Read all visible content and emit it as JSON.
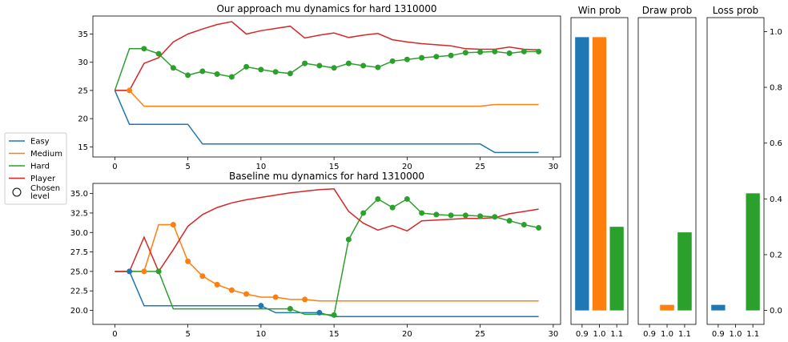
{
  "chart_data": [
    {
      "type": "line",
      "title": "Our approach mu dynamics for hard 1310000",
      "x": [
        0,
        1,
        2,
        3,
        4,
        5,
        6,
        7,
        8,
        9,
        10,
        11,
        12,
        13,
        14,
        15,
        16,
        17,
        18,
        19,
        20,
        21,
        22,
        23,
        24,
        25,
        26,
        27,
        28,
        29
      ],
      "xlim": [
        -1.5,
        30.5
      ],
      "ylim": [
        13.2,
        38.2
      ],
      "xticks": [
        0,
        5,
        10,
        15,
        20,
        25,
        30
      ],
      "yticks": [
        15,
        20,
        25,
        30,
        35
      ],
      "series": [
        {
          "name": "Easy",
          "color": "#1f77b4",
          "values": [
            25,
            19,
            19,
            19,
            19,
            19,
            15.5,
            15.5,
            15.5,
            15.5,
            15.5,
            15.5,
            15.5,
            15.5,
            15.5,
            15.5,
            15.5,
            15.5,
            15.5,
            15.5,
            15.5,
            15.5,
            15.5,
            15.5,
            15.5,
            15.5,
            14,
            14,
            14,
            14
          ],
          "markers": []
        },
        {
          "name": "Medium",
          "color": "#ff7f0e",
          "values": [
            25,
            25,
            22.2,
            22.2,
            22.2,
            22.2,
            22.2,
            22.2,
            22.2,
            22.2,
            22.2,
            22.2,
            22.2,
            22.2,
            22.2,
            22.2,
            22.2,
            22.2,
            22.2,
            22.2,
            22.2,
            22.2,
            22.2,
            22.2,
            22.2,
            22.2,
            22.5,
            22.5,
            22.5,
            22.5
          ],
          "markers": [
            1
          ]
        },
        {
          "name": "Hard",
          "color": "#2ca02c",
          "values": [
            25,
            32.4,
            32.4,
            31.5,
            29,
            27.7,
            28.4,
            27.9,
            27.4,
            29.2,
            28.7,
            28.3,
            28,
            29.8,
            29.4,
            29,
            29.8,
            29.4,
            29.1,
            30.2,
            30.5,
            30.8,
            31,
            31.2,
            31.7,
            31.8,
            31.9,
            31.6,
            31.9,
            31.9
          ],
          "markers": [
            2,
            3,
            4,
            5,
            6,
            7,
            8,
            9,
            10,
            11,
            12,
            13,
            14,
            15,
            16,
            17,
            18,
            19,
            20,
            21,
            22,
            23,
            24,
            25,
            26,
            27,
            28,
            29
          ]
        },
        {
          "name": "Player",
          "color": "#d62728",
          "values": [
            25,
            25,
            29.8,
            30.8,
            33.6,
            35,
            35.9,
            36.7,
            37.2,
            35,
            35.6,
            36,
            36.4,
            34.3,
            34.8,
            35.2,
            34.4,
            34.8,
            35.1,
            34,
            33.6,
            33.3,
            33.1,
            32.9,
            32.4,
            32.3,
            32.3,
            32.7,
            32.3,
            32.2
          ],
          "markers": []
        }
      ]
    },
    {
      "type": "line",
      "title": "Baseline mu dynamics for hard 1310000",
      "x": [
        0,
        1,
        2,
        3,
        4,
        5,
        6,
        7,
        8,
        9,
        10,
        11,
        12,
        13,
        14,
        15,
        16,
        17,
        18,
        19,
        20,
        21,
        22,
        23,
        24,
        25,
        26,
        27,
        28,
        29
      ],
      "xlim": [
        -1.5,
        30.5
      ],
      "ylim": [
        18.2,
        36.3
      ],
      "xticks": [
        0,
        5,
        10,
        15,
        20,
        25,
        30
      ],
      "yticks": [
        "20.0",
        "22.5",
        "25.0",
        "27.5",
        "30.0",
        "32.5",
        "35.0"
      ],
      "series": [
        {
          "name": "Easy",
          "color": "#1f77b4",
          "values": [
            25,
            25,
            20.6,
            20.6,
            20.6,
            20.6,
            20.6,
            20.6,
            20.6,
            20.6,
            20.6,
            19.7,
            19.7,
            19.7,
            19.7,
            19.2,
            19.2,
            19.2,
            19.2,
            19.2,
            19.2,
            19.2,
            19.2,
            19.2,
            19.2,
            19.2,
            19.2,
            19.2,
            19.2,
            19.2
          ],
          "markers": [
            1,
            10,
            14
          ]
        },
        {
          "name": "Medium",
          "color": "#ff7f0e",
          "values": [
            25,
            25,
            25,
            31,
            31,
            26.3,
            24.4,
            23.3,
            22.6,
            22.1,
            21.7,
            21.7,
            21.4,
            21.4,
            21.2,
            21.2,
            21.2,
            21.2,
            21.2,
            21.2,
            21.2,
            21.2,
            21.2,
            21.2,
            21.2,
            21.2,
            21.2,
            21.2,
            21.2,
            21.2
          ],
          "markers": [
            2,
            4,
            5,
            6,
            7,
            8,
            9,
            11,
            13
          ]
        },
        {
          "name": "Hard",
          "color": "#2ca02c",
          "values": [
            25,
            25,
            25,
            25,
            20.2,
            20.2,
            20.2,
            20.2,
            20.2,
            20.2,
            20.2,
            20.2,
            20.2,
            19.5,
            19.5,
            19.4,
            29.1,
            32.5,
            34.3,
            33.2,
            34.3,
            32.5,
            32.3,
            32.2,
            32.2,
            32.1,
            32,
            31.5,
            31,
            30.6
          ],
          "markers": [
            3,
            12,
            15,
            16,
            17,
            18,
            19,
            20,
            21,
            22,
            23,
            24,
            25,
            26,
            27,
            28,
            29
          ]
        },
        {
          "name": "Player",
          "color": "#d62728",
          "values": [
            25,
            25,
            29.4,
            25,
            27.8,
            30.8,
            32.3,
            33.2,
            33.8,
            34.2,
            34.5,
            34.8,
            35.1,
            35.3,
            35.5,
            35.6,
            32.7,
            31.2,
            30.3,
            30.9,
            30.2,
            31.5,
            31.6,
            31.7,
            31.8,
            31.8,
            31.9,
            32.4,
            32.7,
            33
          ]
        }
      ]
    },
    {
      "type": "bar",
      "title": "Win prob",
      "categories": [
        "0.9",
        "1.0",
        "1.1"
      ],
      "values": [
        0.98,
        0.98,
        0.3
      ],
      "colors": [
        "#1f77b4",
        "#ff7f0e",
        "#2ca02c"
      ],
      "ylim": [
        -0.05,
        1.05
      ]
    },
    {
      "type": "bar",
      "title": "Draw prob",
      "categories": [
        "0.9",
        "1.0",
        "1.1"
      ],
      "values": [
        0.0,
        0.02,
        0.28
      ],
      "colors": [
        "#1f77b4",
        "#ff7f0e",
        "#2ca02c"
      ],
      "ylim": [
        -0.05,
        1.05
      ]
    },
    {
      "type": "bar",
      "title": "Loss prob",
      "categories": [
        "0.9",
        "1.0",
        "1.1"
      ],
      "values": [
        0.02,
        0.0,
        0.42
      ],
      "colors": [
        "#1f77b4",
        "#ff7f0e",
        "#2ca02c"
      ],
      "ylim": [
        -0.05,
        1.05
      ],
      "yticks": [
        "0.0",
        "0.2",
        "0.4",
        "0.6",
        "0.8",
        "1.0"
      ]
    }
  ],
  "legend": {
    "placement": "left",
    "items": [
      {
        "label": "Easy",
        "color": "#1f77b4",
        "kind": "line"
      },
      {
        "label": "Medium",
        "color": "#ff7f0e",
        "kind": "line"
      },
      {
        "label": "Hard",
        "color": "#2ca02c",
        "kind": "line"
      },
      {
        "label": "Player",
        "color": "#d62728",
        "kind": "line"
      },
      {
        "label": "Chosen level",
        "kind": "marker",
        "lines": [
          "Chosen",
          "level"
        ]
      }
    ]
  }
}
